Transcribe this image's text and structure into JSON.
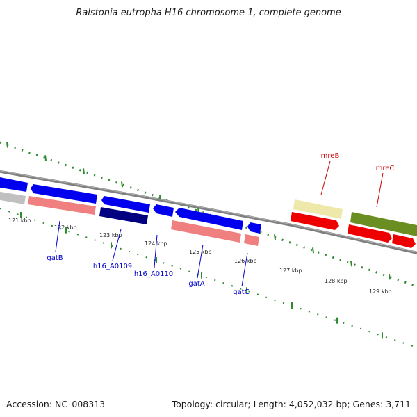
{
  "title": "Ralstonia eutropha H16 chromosome 1, complete genome",
  "footer": {
    "accession": "Accession: NC_008313",
    "summary": "Topology: circular; Length: 4,052,032 bp; Genes: 3,711"
  },
  "scale_ticks": [
    "121 kbp",
    "122 kbp",
    "123 kbp",
    "124 kbp",
    "125 kbp",
    "126 kbp",
    "127 kbp",
    "128 kbp",
    "129 kbp"
  ],
  "gene_labels": [
    {
      "text": "gatB",
      "color": "#0000cc"
    },
    {
      "text": "h16_A0109",
      "color": "#0000cc"
    },
    {
      "text": "h16_A0110",
      "color": "#0000cc"
    },
    {
      "text": "gatA",
      "color": "#0000cc"
    },
    {
      "text": "gatC",
      "color": "#0000cc"
    },
    {
      "text": "mreB",
      "color": "#cc0000"
    },
    {
      "text": "mreC",
      "color": "#cc0000"
    }
  ],
  "colors": {
    "backbone": "#808080",
    "tick": "#2e8b2e",
    "blue": "#0000ee",
    "navy": "#000080",
    "pink": "#f08080",
    "gray": "#c0c0c0",
    "yellow": "#eee8aa",
    "red": "#ee0000",
    "olive": "#6b8e23"
  }
}
